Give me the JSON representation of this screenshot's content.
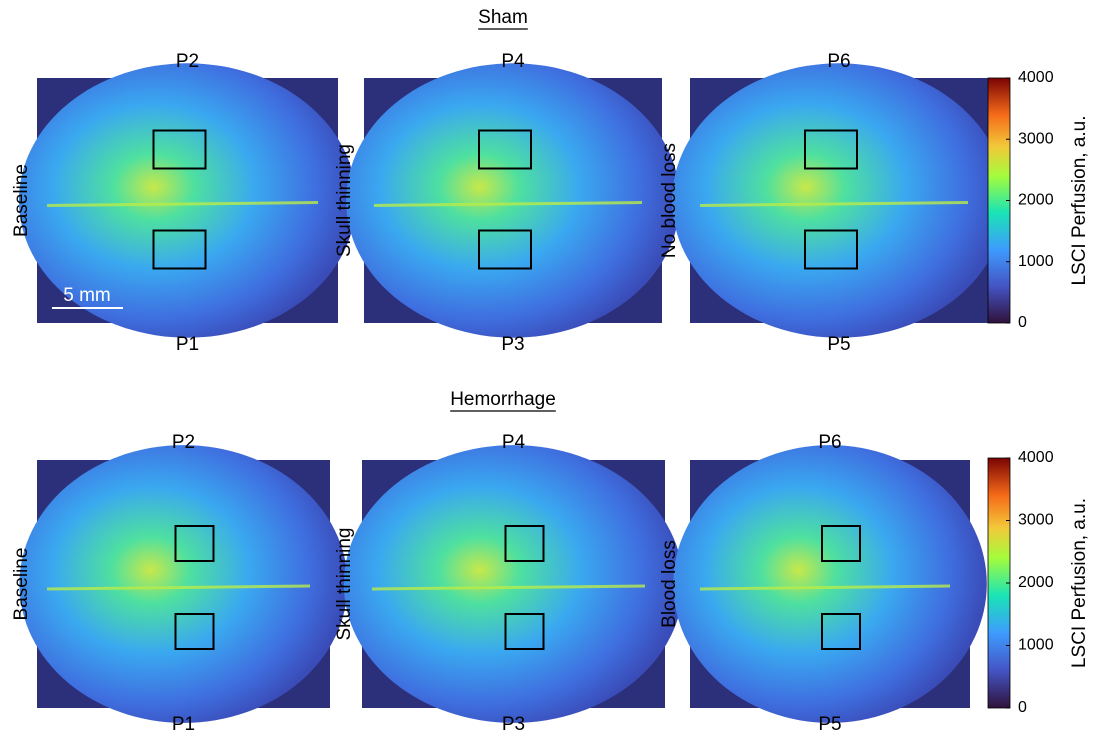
{
  "sections": [
    {
      "title": "Sham",
      "panels": [
        {
          "label": "Baseline",
          "top": "P2",
          "bottom": "P1"
        },
        {
          "label": "Skull thinning",
          "top": "P4",
          "bottom": "P3"
        },
        {
          "label": "No blood loss",
          "top": "P6",
          "bottom": "P5"
        }
      ],
      "colorbar": {
        "label": "LSCI Perfusion, a.u.",
        "lim": [
          0,
          4000
        ],
        "ticks": [
          0,
          1000,
          2000,
          3000,
          4000
        ]
      }
    },
    {
      "title": "Hemorrhage",
      "panels": [
        {
          "label": "Baseline",
          "top": "P2",
          "bottom": "P1"
        },
        {
          "label": "Skull thinning",
          "top": "P4",
          "bottom": "P3"
        },
        {
          "label": "Blood loss",
          "top": "P6",
          "bottom": "P5"
        }
      ],
      "colorbar": {
        "label": "LSCI Perfusion, a.u.",
        "lim": [
          0,
          4000
        ],
        "ticks": [
          0,
          1000,
          2000,
          3000,
          4000
        ]
      }
    }
  ],
  "scale_bar": "5 mm"
}
